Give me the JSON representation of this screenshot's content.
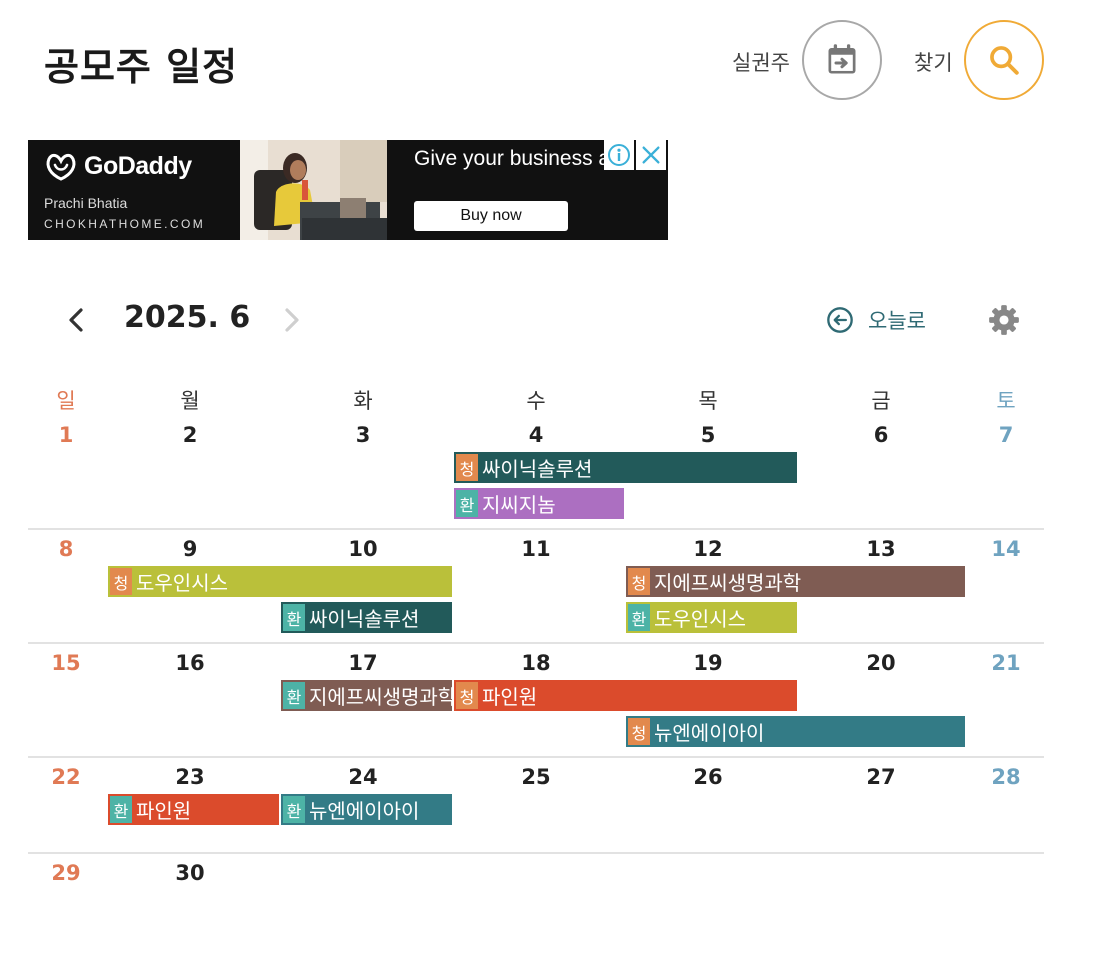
{
  "header": {
    "title": "공모주 일정",
    "today_button_label": "실권주",
    "search_button_label": "찾기"
  },
  "ad": {
    "brand": "GoDaddy",
    "person": "Prachi Bhatia",
    "site": "CHOKHATHOME.COM",
    "headline": "Give your business address online",
    "cta": "Buy now"
  },
  "calendar": {
    "month_label": "2025. 6",
    "goto_today_label": "오늘로",
    "weekdays": [
      "일",
      "월",
      "화",
      "수",
      "목",
      "금",
      "토"
    ],
    "weeks": [
      [
        "1",
        "2",
        "3",
        "4",
        "5",
        "6",
        "7"
      ],
      [
        "8",
        "9",
        "10",
        "11",
        "12",
        "13",
        "14"
      ],
      [
        "15",
        "16",
        "17",
        "18",
        "19",
        "20",
        "21"
      ],
      [
        "22",
        "23",
        "24",
        "25",
        "26",
        "27",
        "28"
      ],
      [
        "29",
        "30"
      ]
    ],
    "events": [
      {
        "badge": "청",
        "type": "cheong",
        "name": "싸이닉솔루션",
        "week": 0,
        "start": 3,
        "end": 4,
        "lane": 0,
        "color": "#225a5a"
      },
      {
        "badge": "환",
        "type": "hwan",
        "name": "지씨지놈",
        "week": 0,
        "start": 3,
        "end": 3,
        "lane": 1,
        "color": "#ac6fc1"
      },
      {
        "badge": "청",
        "type": "cheong",
        "name": "도우인시스",
        "week": 1,
        "start": 1,
        "end": 2,
        "lane": 0,
        "color": "#bac03a"
      },
      {
        "badge": "청",
        "type": "cheong",
        "name": "지에프씨생명과학",
        "week": 1,
        "start": 4,
        "end": 5,
        "lane": 0,
        "color": "#7f5c53"
      },
      {
        "badge": "환",
        "type": "hwan",
        "name": "싸이닉솔루션",
        "week": 1,
        "start": 2,
        "end": 2,
        "lane": 1,
        "color": "#225a5a"
      },
      {
        "badge": "환",
        "type": "hwan",
        "name": "도우인시스",
        "week": 1,
        "start": 4,
        "end": 4,
        "lane": 1,
        "color": "#bac03a"
      },
      {
        "badge": "환",
        "type": "hwan",
        "name": "지에프씨생명과학",
        "week": 2,
        "start": 2,
        "end": 2,
        "lane": 0,
        "color": "#7f5c53"
      },
      {
        "badge": "청",
        "type": "cheong",
        "name": "파인원",
        "week": 2,
        "start": 3,
        "end": 4,
        "lane": 0,
        "color": "#db4b2c"
      },
      {
        "badge": "청",
        "type": "cheong",
        "name": "뉴엔에이아이",
        "week": 2,
        "start": 4,
        "end": 5,
        "lane": 1,
        "color": "#337b86"
      },
      {
        "badge": "환",
        "type": "hwan",
        "name": "파인원",
        "week": 3,
        "start": 1,
        "end": 1,
        "lane": 0,
        "color": "#db4b2c"
      },
      {
        "badge": "환",
        "type": "hwan",
        "name": "뉴엔에이아이",
        "week": 3,
        "start": 2,
        "end": 2,
        "lane": 0,
        "color": "#337b86"
      }
    ]
  }
}
